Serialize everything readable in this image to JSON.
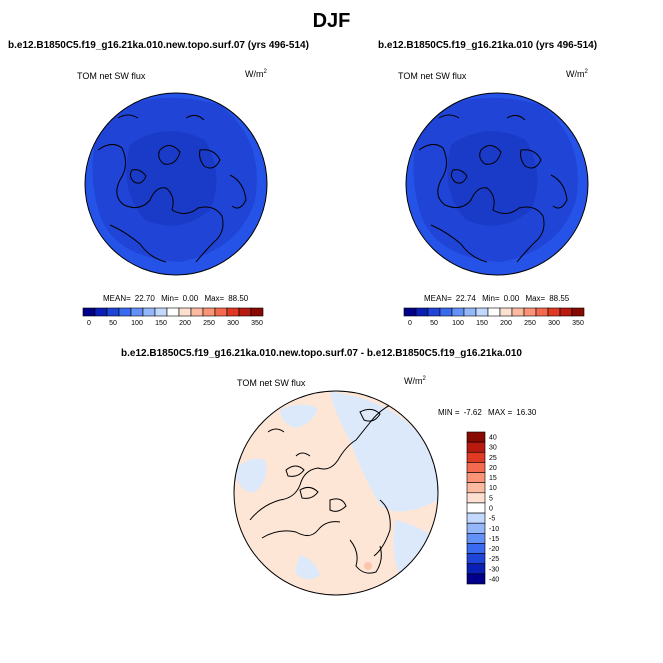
{
  "title": "DJF",
  "panels": [
    {
      "title": "b.e12.B1850C5.f19_g16.21ka.010.new.topo.surf.07 (yrs 496-514)",
      "variable": "TOM net SW flux",
      "units_base": "W/m",
      "units_exp": "2",
      "stats": {
        "mean_label": "MEAN=",
        "mean": "22.70",
        "min_label": "Min=",
        "min": "0.00",
        "max_label": "Max=",
        "max": "88.50"
      }
    },
    {
      "title": "b.e12.B1850C5.f19_g16.21ka.010 (yrs 496-514)",
      "variable": "TOM net SW flux",
      "units_base": "W/m",
      "units_exp": "2",
      "stats": {
        "mean_label": "MEAN=",
        "mean": "22.74",
        "min_label": "Min=",
        "min": "0.00",
        "max_label": "Max=",
        "max": "88.55"
      }
    }
  ],
  "diff_panel": {
    "title": "b.e12.B1850C5.f19_g16.21ka.010.new.topo.surf.07 - b.e12.B1850C5.f19_g16.21ka.010",
    "variable": "TOM net SW flux",
    "units_base": "W/m",
    "units_exp": "2",
    "stats": {
      "min_label": "MIN =",
      "min": "-7.62",
      "max_label": "MAX =",
      "max": "16.30"
    }
  },
  "colorbar_abs": {
    "colors": [
      "#00008a",
      "#0a1fb4",
      "#1f45d8",
      "#3a6af0",
      "#6491f8",
      "#94b6fb",
      "#c2d8fd",
      "#ffffff",
      "#fde0d0",
      "#fcbba0",
      "#fb9476",
      "#f56a4e",
      "#e03a25",
      "#b81a10",
      "#880900"
    ],
    "labels": [
      "0",
      "50",
      "100",
      "150",
      "200",
      "250",
      "300",
      "350"
    ]
  },
  "colorbar_diff": {
    "colors": [
      "#880900",
      "#b81a10",
      "#e03a25",
      "#f56a4e",
      "#fb9476",
      "#fcbba0",
      "#fde0d0",
      "#ffffff",
      "#c2d8fd",
      "#94b6fb",
      "#6491f8",
      "#3a6af0",
      "#1f45d8",
      "#0a1fb4",
      "#00008a"
    ],
    "labels": [
      "40",
      "30",
      "25",
      "20",
      "15",
      "10",
      "5",
      "0",
      "-5",
      "-10",
      "-15",
      "-20",
      "-25",
      "-30",
      "-40"
    ]
  },
  "map_colors": {
    "abs_outer": "#2553e8",
    "abs_mid": "#1f44d6",
    "abs_inner": "#1a3bc8",
    "diff_pos": "#fde6d6",
    "diff_neg": "#dce9fb",
    "diff_high": "#fbc6ac",
    "coast": "#000000"
  }
}
